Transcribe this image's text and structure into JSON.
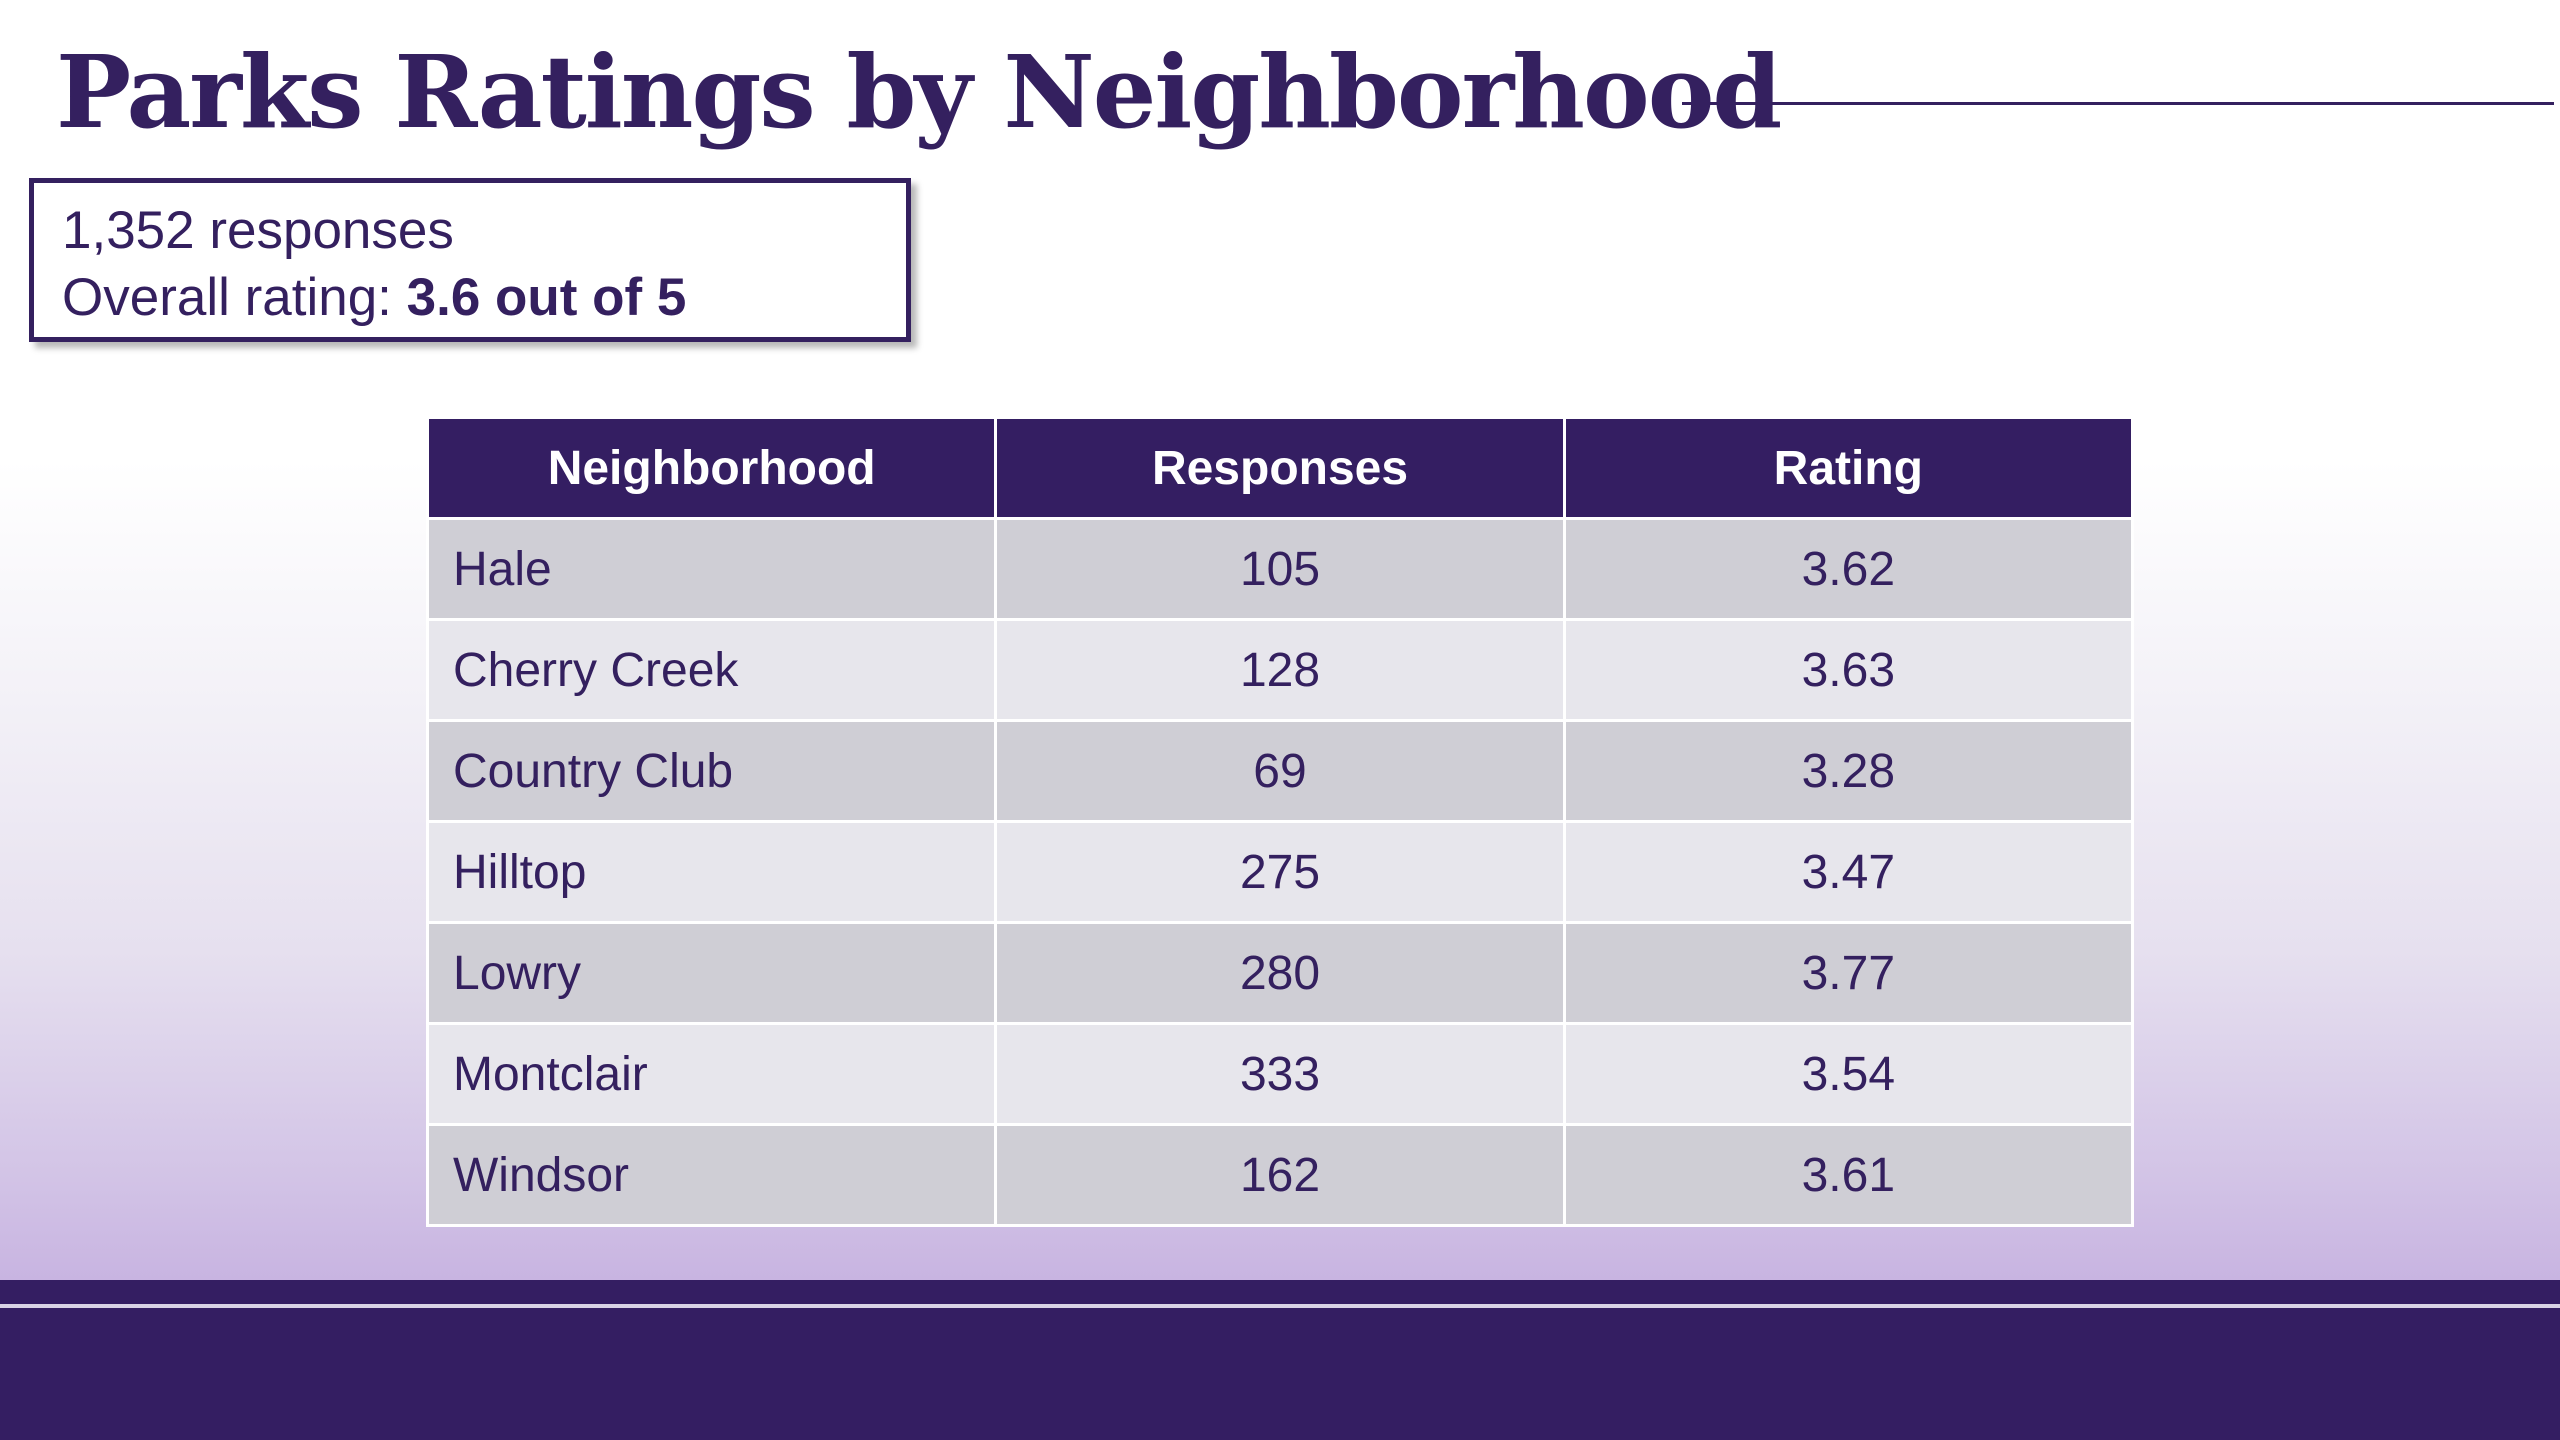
{
  "slide": {
    "title": "Parks Ratings by Neighborhood"
  },
  "summary": {
    "responses_text": "1,352 responses",
    "rating_label": "Overall rating: ",
    "rating_value": "3.6 out of 5"
  },
  "table": {
    "headers": [
      "Neighborhood",
      "Responses",
      "Rating"
    ],
    "rows": [
      {
        "neighborhood": "Hale",
        "responses": "105",
        "rating": "3.62"
      },
      {
        "neighborhood": "Cherry Creek",
        "responses": "128",
        "rating": "3.63"
      },
      {
        "neighborhood": "Country Club",
        "responses": "69",
        "rating": "3.28"
      },
      {
        "neighborhood": "Hilltop",
        "responses": "275",
        "rating": "3.47"
      },
      {
        "neighborhood": "Lowry",
        "responses": "280",
        "rating": "3.77"
      },
      {
        "neighborhood": "Montclair",
        "responses": "333",
        "rating": "3.54"
      },
      {
        "neighborhood": "Windsor",
        "responses": "162",
        "rating": "3.61"
      }
    ]
  },
  "colors": {
    "primary": "#34205f",
    "header_bg": "#341e62",
    "row_dark": "#cfced5",
    "row_light": "#e7e6ec",
    "gradient_end": "#c8b4e1"
  }
}
